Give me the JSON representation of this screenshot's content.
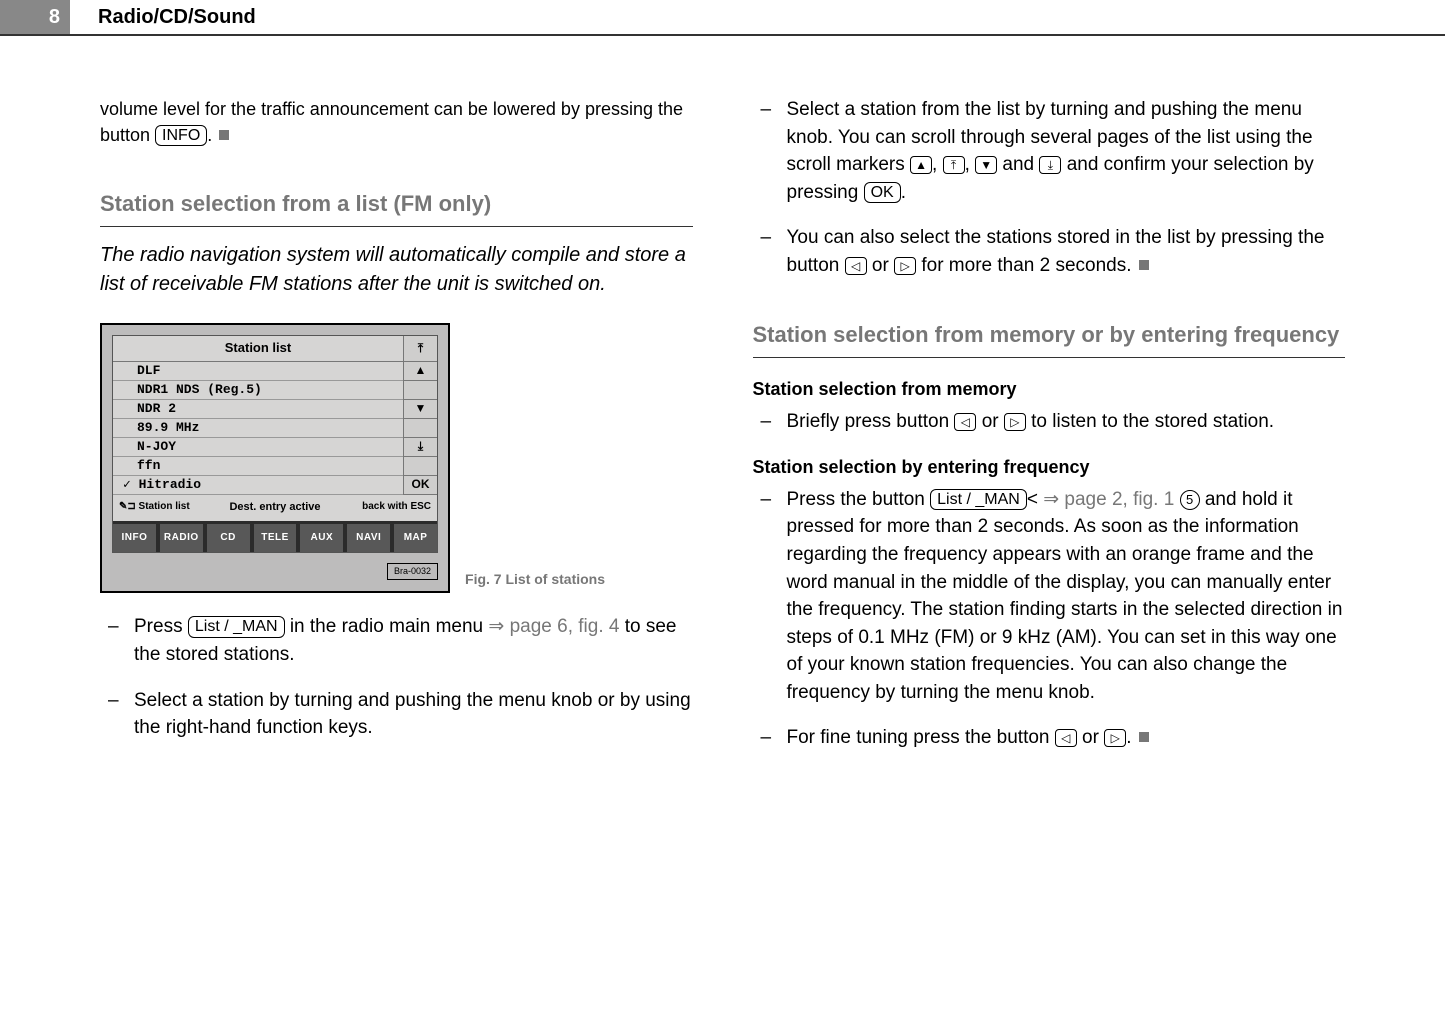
{
  "header": {
    "page_number": "8",
    "title": "Radio/CD/Sound"
  },
  "left": {
    "intro_para_pre": "volume level for the traffic announcement can be lowered by pressing the button ",
    "intro_btn": "INFO",
    "intro_para_post": ". ",
    "section1_title": "Station selection from a list (FM only)",
    "section1_intro": "The radio navigation system will automatically compile and store a list of receivable FM stations after the unit is switched on.",
    "figure": {
      "title": "Station list",
      "items": [
        "DLF",
        "NDR1 NDS (Reg.5)",
        "NDR 2",
        "89.9 MHz",
        "N-JOY",
        "ffn",
        "✓ Hitradio"
      ],
      "side_icons": [
        "⤒",
        "▲",
        "▼",
        "⤓",
        "",
        "OK"
      ],
      "status_left": "✎⊐ Station list",
      "status_mid": "Dest. entry active",
      "status_right": "back with ESC",
      "hw_buttons": [
        "INFO",
        "RADIO",
        "CD",
        "TELE",
        "AUX",
        "NAVI",
        "MAP"
      ],
      "code": "Bra-0032",
      "caption": "Fig. 7   List of stations"
    },
    "bullets": [
      {
        "pre": "Press ",
        "btn": "List / _MAN",
        "mid": " in the radio main menu ",
        "ref": "⇒ page 6, fig. 4",
        "post": " to see the stored stations."
      },
      {
        "text": "Select a station by turning and pushing the menu knob or by using the right-hand function keys."
      }
    ]
  },
  "right": {
    "bullets_top": [
      {
        "pre": "Select a station from the list by turning and pushing the menu knob. You can scroll through several pages of the list using the scroll markers ",
        "icons": [
          "▲",
          "⤒",
          "▼",
          "⤓"
        ],
        "mid": " and confirm your selection by pressing ",
        "btn": "OK",
        "post": "."
      },
      {
        "pre": "You can also select the stations stored in the list by pressing the button ",
        "icons": [
          "◁",
          "▷"
        ],
        "post": " for more than 2 seconds. "
      }
    ],
    "section2_title": "Station selection from memory or by entering frequency",
    "sub1_title": "Station selection from memory",
    "sub1_bullet": {
      "pre": "Briefly press button ",
      "icons": [
        "◁",
        "▷"
      ],
      "post": " to listen to the stored station."
    },
    "sub2_title": "Station selection by entering frequency",
    "sub2_bullets": [
      {
        "pre": "Press the button ",
        "btn": "List / _MAN",
        "ref": " ⇒ page 2, fig. 1  ",
        "circ": "5",
        "post": " and hold it pressed for more than 2 seconds. As soon as the information regarding the frequency appears with an orange frame and the word manual  in the middle  of the display, you can manu­ally enter the frequency. The station finding starts in the selected direction in steps of 0.1 MHz (FM) or 9 kHz (AM). You can set in this way one of your known station frequencies. You can also change the  frequency by turning the menu knob."
      },
      {
        "pre": "For fine tuning press the button ",
        "icons": [
          "◁",
          "▷"
        ],
        "post": ". "
      }
    ]
  }
}
